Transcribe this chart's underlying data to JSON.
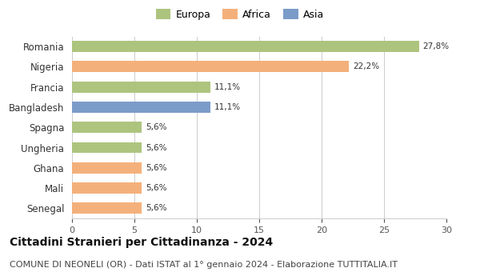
{
  "categories": [
    "Romania",
    "Nigeria",
    "Francia",
    "Bangladesh",
    "Spagna",
    "Ungheria",
    "Ghana",
    "Mali",
    "Senegal"
  ],
  "values": [
    27.8,
    22.2,
    11.1,
    11.1,
    5.6,
    5.6,
    5.6,
    5.6,
    5.6
  ],
  "labels": [
    "27,8%",
    "22,2%",
    "11,1%",
    "11,1%",
    "5,6%",
    "5,6%",
    "5,6%",
    "5,6%",
    "5,6%"
  ],
  "colors": [
    "#adc47e",
    "#f4b07a",
    "#adc47e",
    "#7b9cc9",
    "#adc47e",
    "#adc47e",
    "#f4b07a",
    "#f4b07a",
    "#f4b07a"
  ],
  "legend": [
    {
      "label": "Europa",
      "color": "#adc47e"
    },
    {
      "label": "Africa",
      "color": "#f4b07a"
    },
    {
      "label": "Asia",
      "color": "#7b9cc9"
    }
  ],
  "xlim": [
    0,
    30
  ],
  "xticks": [
    0,
    5,
    10,
    15,
    20,
    25,
    30
  ],
  "title": "Cittadini Stranieri per Cittadinanza - 2024",
  "subtitle": "COMUNE DI NEONELI (OR) - Dati ISTAT al 1° gennaio 2024 - Elaborazione TUTTITALIA.IT",
  "title_fontsize": 10,
  "subtitle_fontsize": 8,
  "background_color": "#ffffff",
  "grid_color": "#cccccc"
}
